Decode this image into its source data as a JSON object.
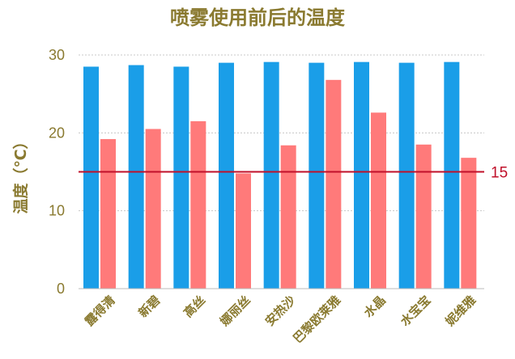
{
  "chart_data": {
    "type": "bar",
    "title": "喷雾使用前后的温度",
    "xlabel": "",
    "ylabel": "温度（℃）",
    "ylim": [
      0,
      30
    ],
    "yticks": [
      "0",
      "10",
      "20",
      "30"
    ],
    "grid": true,
    "legend": "none",
    "categories": [
      "露得清",
      "新碧",
      "高丝",
      "娜丽丝",
      "安热沙",
      "巴黎欧莱雅",
      "水晶",
      "水宝宝",
      "妮维雅"
    ],
    "series": [
      {
        "values": [
          28.5,
          28.7,
          28.5,
          29.0,
          29.1,
          29.0,
          29.1,
          29.0,
          29.1
        ],
        "color": "#1a9ee8"
      },
      {
        "values": [
          19.2,
          20.5,
          21.5,
          14.8,
          18.4,
          26.8,
          22.6,
          18.5,
          16.8
        ],
        "color": "#ff7a7a"
      }
    ],
    "reference_line": {
      "value": 15,
      "label": "15",
      "color": "#c0102a"
    }
  }
}
